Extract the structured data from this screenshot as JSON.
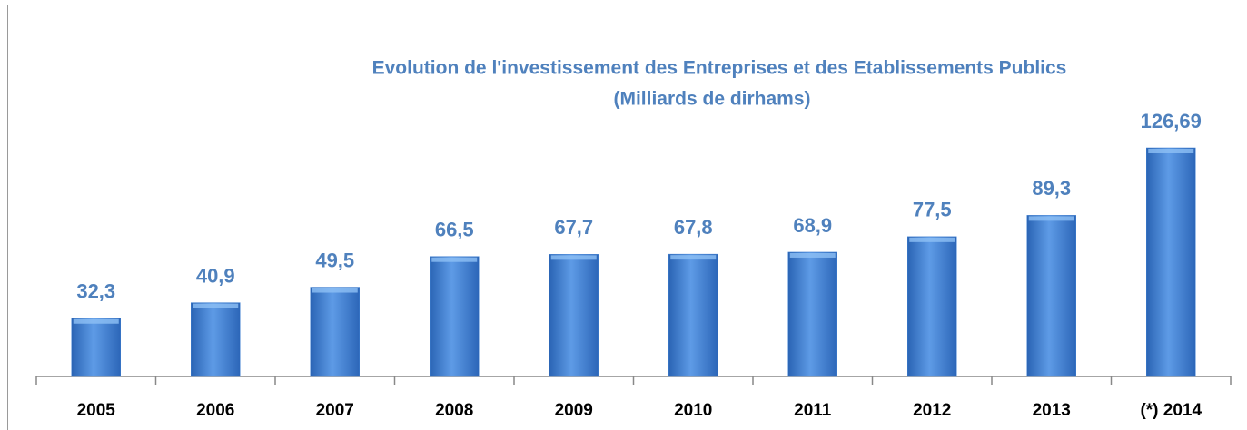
{
  "chart_data": {
    "type": "bar",
    "title": "Evolution de l'investissement des Entreprises et des Etablissements  Publics",
    "subtitle": "(Milliards de dirhams)",
    "categories": [
      "2005",
      "2006",
      "2007",
      "2008",
      "2009",
      "2010",
      "2011",
      "2012",
      "2013",
      "(*) 2014"
    ],
    "values": [
      32.3,
      40.9,
      49.5,
      66.5,
      67.7,
      67.8,
      68.9,
      77.5,
      89.3,
      126.69
    ],
    "value_labels": [
      "32,3",
      "40,9",
      "49,5",
      "66,5",
      "67,7",
      "67,8",
      "68,9",
      "77,5",
      "89,3",
      "126,69"
    ],
    "color": "#3f7fd0"
  }
}
